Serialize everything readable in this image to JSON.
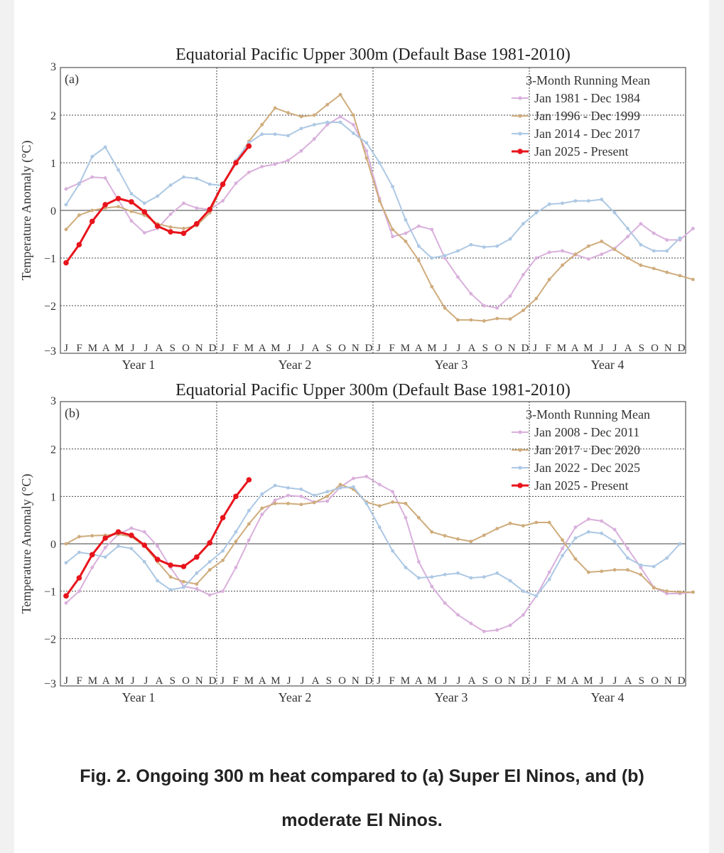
{
  "caption": {
    "line1": "Fig. 2. Ongoing 300 m heat compared to (a) Super El Ninos, and (b)",
    "line2": "moderate El Ninos."
  },
  "month_letters": [
    "J",
    "F",
    "M",
    "A",
    "M",
    "J",
    "J",
    "A",
    "S",
    "O",
    "N",
    "D"
  ],
  "chart_data": [
    {
      "id": "a",
      "type": "line",
      "title": "Equatorial Pacific Upper 300m (Default Base 1981-2010)",
      "panel_label": "(a)",
      "xlabel_groups": [
        "Year 1",
        "Year 2",
        "Year 3",
        "Year 4"
      ],
      "ylabel": "Temperature Anomaly (°C)",
      "ylim": [
        -3,
        3
      ],
      "yticks": [
        "3",
        "2",
        "1",
        "0",
        "−1",
        "−2",
        "−3"
      ],
      "legend_title": "3-Month Running Mean",
      "series": [
        {
          "name": "Jan 1981 - Dec 1984",
          "color": "#d9b0dc",
          "values": [
            0.45,
            0.57,
            0.7,
            0.68,
            0.22,
            -0.22,
            -0.47,
            -0.38,
            -0.08,
            0.15,
            0.05,
            0.02,
            0.2,
            0.57,
            0.8,
            0.92,
            0.97,
            1.05,
            1.25,
            1.5,
            1.8,
            1.97,
            1.8,
            1.25,
            0.25,
            -0.55,
            -0.48,
            -0.33,
            -0.4,
            -1.0,
            -1.4,
            -1.75,
            -2.0,
            -2.05,
            -1.8,
            -1.35,
            -1.0,
            -0.88,
            -0.85,
            -0.93,
            -1.02,
            -0.92,
            -0.8,
            -0.55,
            -0.28,
            -0.48,
            -0.62,
            -0.62,
            -0.38
          ]
        },
        {
          "name": "Jan 1996 - Dec 1999",
          "color": "#cfac7c",
          "values": [
            -0.4,
            -0.1,
            0.0,
            0.05,
            0.08,
            -0.02,
            -0.1,
            -0.28,
            -0.35,
            -0.38,
            -0.32,
            -0.05,
            0.55,
            1.0,
            1.45,
            1.8,
            2.15,
            2.05,
            1.97,
            2.0,
            2.22,
            2.43,
            2.0,
            1.1,
            0.2,
            -0.4,
            -0.65,
            -1.05,
            -1.6,
            -2.05,
            -2.3,
            -2.3,
            -2.32,
            -2.27,
            -2.28,
            -2.1,
            -1.85,
            -1.45,
            -1.15,
            -0.92,
            -0.75,
            -0.65,
            -0.82,
            -1.0,
            -1.15,
            -1.22,
            -1.3,
            -1.37,
            -1.45
          ]
        },
        {
          "name": "Jan 2014 - Dec 2017",
          "color": "#adc8e4",
          "values": [
            0.12,
            0.55,
            1.13,
            1.33,
            0.85,
            0.35,
            0.15,
            0.3,
            0.53,
            0.7,
            0.67,
            0.55,
            0.52,
            1.05,
            1.42,
            1.6,
            1.6,
            1.57,
            1.72,
            1.8,
            1.85,
            1.85,
            1.62,
            1.42,
            1.0,
            0.5,
            -0.2,
            -0.75,
            -1.0,
            -0.95,
            -0.85,
            -0.72,
            -0.77,
            -0.75,
            -0.6,
            -0.28,
            -0.05,
            0.13,
            0.15,
            0.2,
            0.2,
            0.23,
            -0.05,
            -0.38,
            -0.72,
            -0.85,
            -0.85,
            -0.58
          ]
        },
        {
          "name": "Jan 2025 - Present",
          "color": "#e8141c",
          "values": [
            -1.1,
            -0.72,
            -0.23,
            0.12,
            0.25,
            0.18,
            -0.03,
            -0.33,
            -0.45,
            -0.48,
            -0.28,
            0.02,
            0.55,
            1.0,
            1.35
          ]
        }
      ]
    },
    {
      "id": "b",
      "type": "line",
      "title": "Equatorial Pacific Upper 300m (Default Base 1981-2010)",
      "panel_label": "(b)",
      "xlabel_groups": [
        "Year 1",
        "Year 2",
        "Year 3",
        "Year 4"
      ],
      "ylabel": "Temperature Anomaly (°C)",
      "ylim": [
        -3,
        3
      ],
      "yticks": [
        "3",
        "2",
        "1",
        "0",
        "−1",
        "−2",
        "−3"
      ],
      "legend_title": "3-Month Running Mean",
      "series": [
        {
          "name": "Jan 2008 - Dec 2011",
          "color": "#d9b0dc",
          "values": [
            -1.25,
            -1.0,
            -0.5,
            -0.08,
            0.2,
            0.33,
            0.25,
            -0.05,
            -0.5,
            -0.9,
            -0.95,
            -1.08,
            -1.0,
            -0.5,
            0.08,
            0.62,
            0.92,
            1.02,
            1.0,
            0.88,
            0.9,
            1.2,
            1.38,
            1.42,
            1.25,
            1.1,
            0.55,
            -0.38,
            -0.9,
            -1.25,
            -1.5,
            -1.68,
            -1.85,
            -1.82,
            -1.72,
            -1.5,
            -1.1,
            -0.6,
            -0.1,
            0.35,
            0.52,
            0.48,
            0.3,
            -0.1,
            -0.5,
            -0.92,
            -1.05,
            -1.05,
            -1.02
          ]
        },
        {
          "name": "Jan 2017 - Dec 2020",
          "color": "#cfac7c",
          "values": [
            0.0,
            0.15,
            0.17,
            0.18,
            0.2,
            0.15,
            -0.05,
            -0.38,
            -0.7,
            -0.8,
            -0.85,
            -0.55,
            -0.35,
            0.05,
            0.42,
            0.75,
            0.85,
            0.85,
            0.83,
            0.87,
            1.0,
            1.25,
            1.15,
            0.88,
            0.8,
            0.88,
            0.85,
            0.55,
            0.25,
            0.17,
            0.1,
            0.05,
            0.18,
            0.32,
            0.43,
            0.38,
            0.45,
            0.45,
            0.08,
            -0.32,
            -0.6,
            -0.58,
            -0.55,
            -0.55,
            -0.65,
            -0.93,
            -1.0,
            -1.02,
            -1.02
          ]
        },
        {
          "name": "Jan 2022 - Dec 2025",
          "color": "#adc8e4",
          "values": [
            -0.4,
            -0.18,
            -0.22,
            -0.28,
            -0.05,
            -0.1,
            -0.38,
            -0.78,
            -0.97,
            -0.92,
            -0.62,
            -0.38,
            -0.15,
            0.25,
            0.7,
            1.05,
            1.23,
            1.18,
            1.15,
            1.02,
            1.1,
            1.18,
            1.2,
            0.85,
            0.35,
            -0.15,
            -0.5,
            -0.72,
            -0.7,
            -0.65,
            -0.62,
            -0.72,
            -0.7,
            -0.62,
            -0.78,
            -1.0,
            -1.1,
            -0.75,
            -0.25,
            0.12,
            0.25,
            0.22,
            0.05,
            -0.3,
            -0.45,
            -0.48,
            -0.3,
            0.0
          ]
        },
        {
          "name": "Jan 2025 - Present",
          "color": "#e8141c",
          "values": [
            -1.1,
            -0.72,
            -0.23,
            0.12,
            0.25,
            0.18,
            -0.03,
            -0.33,
            -0.45,
            -0.48,
            -0.28,
            0.02,
            0.55,
            1.0,
            1.35
          ]
        }
      ]
    }
  ]
}
